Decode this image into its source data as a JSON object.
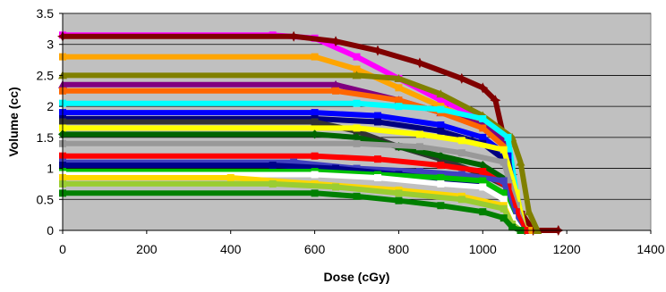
{
  "chart_data": {
    "type": "line",
    "title": "",
    "xlabel": "Dose (cGy)",
    "ylabel": "Volume (cc)",
    "xlim": [
      0,
      1400
    ],
    "ylim": [
      0,
      3.5
    ],
    "x_ticks": [
      "0",
      "200",
      "400",
      "600",
      "800",
      "1000",
      "1200",
      "1400"
    ],
    "y_ticks": [
      "0",
      "0.5",
      "1",
      "1.5",
      "2",
      "2.5",
      "3",
      "3.5"
    ],
    "grid": "horizontal",
    "legend": "none",
    "plot_background": "#c0c0c0",
    "series": [
      {
        "color": "#ff00ff",
        "marker": "square",
        "points": [
          [
            0,
            3.15
          ],
          [
            500,
            3.15
          ],
          [
            600,
            3.1
          ],
          [
            700,
            2.8
          ],
          [
            800,
            2.45
          ],
          [
            900,
            2.1
          ],
          [
            1000,
            1.8
          ],
          [
            1050,
            1.5
          ],
          [
            1070,
            0.8
          ],
          [
            1090,
            0.2
          ],
          [
            1110,
            0
          ]
        ]
      },
      {
        "color": "#800000",
        "marker": "star",
        "points": [
          [
            0,
            3.13
          ],
          [
            550,
            3.13
          ],
          [
            650,
            3.05
          ],
          [
            750,
            2.9
          ],
          [
            850,
            2.7
          ],
          [
            950,
            2.45
          ],
          [
            1000,
            2.3
          ],
          [
            1030,
            2.1
          ],
          [
            1050,
            1.5
          ],
          [
            1070,
            0.9
          ],
          [
            1090,
            0.3
          ],
          [
            1120,
            0
          ],
          [
            1180,
            0
          ]
        ]
      },
      {
        "color": "#ffa500",
        "marker": "square",
        "points": [
          [
            0,
            2.8
          ],
          [
            600,
            2.8
          ],
          [
            700,
            2.6
          ],
          [
            800,
            2.3
          ],
          [
            900,
            2.0
          ],
          [
            1000,
            1.7
          ],
          [
            1050,
            1.4
          ],
          [
            1070,
            0.7
          ],
          [
            1090,
            0.1
          ],
          [
            1110,
            0
          ]
        ]
      },
      {
        "color": "#808000",
        "marker": "triangle",
        "points": [
          [
            0,
            2.5
          ],
          [
            700,
            2.5
          ],
          [
            800,
            2.45
          ],
          [
            900,
            2.2
          ],
          [
            1000,
            1.85
          ],
          [
            1070,
            1.5
          ],
          [
            1090,
            1.1
          ],
          [
            1110,
            0.3
          ],
          [
            1130,
            0
          ]
        ]
      },
      {
        "color": "#800080",
        "marker": "triangle",
        "points": [
          [
            0,
            2.35
          ],
          [
            650,
            2.35
          ],
          [
            800,
            2.1
          ],
          [
            900,
            1.9
          ],
          [
            1000,
            1.7
          ],
          [
            1060,
            1.4
          ],
          [
            1080,
            0.5
          ],
          [
            1100,
            0
          ]
        ]
      },
      {
        "color": "#ff6600",
        "marker": "square",
        "points": [
          [
            0,
            2.25
          ],
          [
            650,
            2.25
          ],
          [
            800,
            2.1
          ],
          [
            900,
            1.9
          ],
          [
            1000,
            1.65
          ],
          [
            1060,
            1.3
          ],
          [
            1080,
            0.5
          ],
          [
            1100,
            0
          ]
        ]
      },
      {
        "color": "#00ffff",
        "marker": "square",
        "points": [
          [
            0,
            2.05
          ],
          [
            700,
            2.05
          ],
          [
            800,
            2.0
          ],
          [
            900,
            1.95
          ],
          [
            1000,
            1.8
          ],
          [
            1060,
            1.5
          ],
          [
            1080,
            0.6
          ],
          [
            1100,
            0
          ]
        ]
      },
      {
        "color": "#0000ff",
        "marker": "square",
        "points": [
          [
            0,
            1.9
          ],
          [
            600,
            1.9
          ],
          [
            750,
            1.85
          ],
          [
            900,
            1.7
          ],
          [
            1000,
            1.5
          ],
          [
            1060,
            1.2
          ],
          [
            1080,
            0.4
          ],
          [
            1100,
            0
          ]
        ]
      },
      {
        "color": "#000080",
        "marker": "square",
        "points": [
          [
            0,
            1.8
          ],
          [
            600,
            1.8
          ],
          [
            750,
            1.75
          ],
          [
            900,
            1.6
          ],
          [
            1000,
            1.4
          ],
          [
            1060,
            1.1
          ],
          [
            1080,
            0.4
          ],
          [
            1100,
            0
          ]
        ]
      },
      {
        "color": "#333333",
        "marker": "square",
        "points": [
          [
            0,
            1.75
          ],
          [
            600,
            1.75
          ],
          [
            700,
            1.6
          ],
          [
            800,
            1.35
          ],
          [
            900,
            1.15
          ],
          [
            1000,
            0.9
          ],
          [
            1060,
            0.7
          ],
          [
            1080,
            0.3
          ],
          [
            1100,
            0
          ]
        ]
      },
      {
        "color": "#ffff00",
        "marker": "square",
        "points": [
          [
            0,
            1.65
          ],
          [
            700,
            1.65
          ],
          [
            850,
            1.55
          ],
          [
            950,
            1.45
          ],
          [
            1050,
            1.3
          ],
          [
            1080,
            0.6
          ],
          [
            1100,
            0
          ]
        ]
      },
      {
        "color": "#006400",
        "marker": "diamond",
        "points": [
          [
            0,
            1.55
          ],
          [
            600,
            1.55
          ],
          [
            700,
            1.5
          ],
          [
            800,
            1.35
          ],
          [
            900,
            1.2
          ],
          [
            1000,
            1.05
          ],
          [
            1060,
            0.8
          ],
          [
            1080,
            0.3
          ],
          [
            1100,
            0
          ]
        ]
      },
      {
        "color": "#999999",
        "marker": "square",
        "points": [
          [
            0,
            1.4
          ],
          [
            700,
            1.4
          ],
          [
            850,
            1.35
          ],
          [
            950,
            1.25
          ],
          [
            1050,
            1.1
          ],
          [
            1080,
            0.4
          ],
          [
            1100,
            0
          ]
        ]
      },
      {
        "color": "#ff0000",
        "marker": "square",
        "points": [
          [
            0,
            1.2
          ],
          [
            600,
            1.2
          ],
          [
            750,
            1.15
          ],
          [
            900,
            1.05
          ],
          [
            1000,
            0.95
          ],
          [
            1060,
            0.7
          ],
          [
            1080,
            0.3
          ],
          [
            1100,
            0
          ]
        ]
      },
      {
        "color": "#4040c0",
        "marker": "square",
        "points": [
          [
            0,
            1.1
          ],
          [
            550,
            1.1
          ],
          [
            700,
            1.0
          ],
          [
            850,
            0.95
          ],
          [
            950,
            0.9
          ],
          [
            1050,
            0.8
          ],
          [
            1070,
            0.3
          ],
          [
            1090,
            0
          ]
        ]
      },
      {
        "color": "#00008b",
        "marker": "square",
        "points": [
          [
            0,
            1.05
          ],
          [
            500,
            1.05
          ],
          [
            650,
            1.0
          ],
          [
            800,
            0.9
          ],
          [
            950,
            0.8
          ],
          [
            1050,
            0.6
          ],
          [
            1070,
            0.2
          ],
          [
            1090,
            0
          ]
        ]
      },
      {
        "color": "#00c000",
        "marker": "square",
        "points": [
          [
            0,
            0.95
          ],
          [
            600,
            0.95
          ],
          [
            750,
            0.9
          ],
          [
            900,
            0.85
          ],
          [
            1000,
            0.8
          ],
          [
            1050,
            0.6
          ],
          [
            1070,
            0.2
          ],
          [
            1090,
            0
          ]
        ]
      },
      {
        "color": "#ffffff",
        "marker": "square",
        "points": [
          [
            0,
            0.9
          ],
          [
            600,
            0.9
          ],
          [
            750,
            0.85
          ],
          [
            900,
            0.75
          ],
          [
            1000,
            0.7
          ],
          [
            1050,
            0.5
          ],
          [
            1070,
            0.2
          ],
          [
            1090,
            0
          ]
        ]
      },
      {
        "color": "#ffd700",
        "marker": "square",
        "points": [
          [
            0,
            0.85
          ],
          [
            400,
            0.85
          ],
          [
            600,
            0.75
          ],
          [
            800,
            0.65
          ],
          [
            950,
            0.55
          ],
          [
            1050,
            0.4
          ],
          [
            1070,
            0.1
          ],
          [
            1090,
            0
          ]
        ]
      },
      {
        "color": "#9acd32",
        "marker": "square",
        "points": [
          [
            0,
            0.75
          ],
          [
            500,
            0.75
          ],
          [
            650,
            0.7
          ],
          [
            800,
            0.6
          ],
          [
            950,
            0.5
          ],
          [
            1050,
            0.35
          ],
          [
            1070,
            0.1
          ],
          [
            1090,
            0
          ]
        ]
      },
      {
        "color": "#008000",
        "marker": "square",
        "points": [
          [
            0,
            0.6
          ],
          [
            600,
            0.6
          ],
          [
            700,
            0.55
          ],
          [
            800,
            0.48
          ],
          [
            900,
            0.4
          ],
          [
            1000,
            0.3
          ],
          [
            1050,
            0.2
          ],
          [
            1070,
            0.05
          ],
          [
            1090,
            0
          ]
        ]
      }
    ]
  }
}
